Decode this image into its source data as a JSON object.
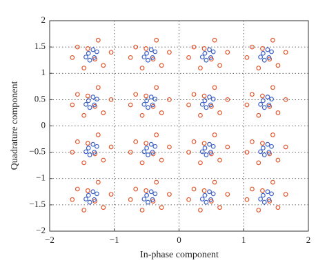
{
  "chart_data": {
    "type": "scatter",
    "xlabel": "In-phase component",
    "ylabel": "Quadrature component",
    "xlim": [
      -2,
      2
    ],
    "ylim": [
      -2,
      2
    ],
    "xticks": [
      {
        "value": -2,
        "label": "−2"
      },
      {
        "value": -1,
        "label": "−1"
      },
      0,
      1,
      2
    ],
    "yticks": [
      {
        "value": -2,
        "label": "−2"
      },
      {
        "value": -1.5,
        "label": "−1.5"
      },
      {
        "value": -1,
        "label": "−1"
      },
      {
        "value": -0.5,
        "label": "−0.5"
      },
      0,
      0.5,
      1,
      1.5,
      2
    ],
    "grid": true,
    "series": [
      {
        "color": "#e2572e",
        "x": [
          -1.57,
          -1.17,
          -1.05,
          -1.47,
          -1.25,
          -1.65,
          -1.3,
          -1.41,
          -0.67,
          -0.27,
          -0.15,
          -0.57,
          -0.35,
          -0.75,
          -0.4,
          -0.51,
          0.23,
          0.63,
          0.75,
          0.33,
          0.55,
          0.15,
          0.5,
          0.39,
          1.13,
          1.53,
          1.65,
          1.23,
          1.45,
          1.05,
          1.4,
          1.29,
          -1.57,
          -1.17,
          -1.05,
          -1.47,
          -1.25,
          -1.65,
          -1.3,
          -1.41,
          -0.67,
          -0.27,
          -0.15,
          -0.57,
          -0.35,
          -0.75,
          -0.4,
          -0.51,
          0.23,
          0.63,
          0.75,
          0.33,
          0.55,
          0.15,
          0.5,
          0.39,
          1.13,
          1.53,
          1.65,
          1.23,
          1.45,
          1.05,
          1.4,
          1.29,
          -1.57,
          -1.17,
          -1.05,
          -1.47,
          -1.25,
          -1.65,
          -1.3,
          -1.41,
          -0.67,
          -0.27,
          -0.15,
          -0.57,
          -0.35,
          -0.75,
          -0.4,
          -0.51,
          0.23,
          0.63,
          0.75,
          0.33,
          0.55,
          0.15,
          0.5,
          0.39,
          1.13,
          1.53,
          1.65,
          1.23,
          1.45,
          1.05,
          1.4,
          1.29,
          -1.57,
          -1.17,
          -1.05,
          -1.47,
          -1.25,
          -1.65,
          -1.3,
          -1.41,
          -0.67,
          -0.27,
          -0.15,
          -0.57,
          -0.35,
          -0.75,
          -0.4,
          -0.51,
          0.23,
          0.63,
          0.75,
          0.33,
          0.55,
          0.15,
          0.5,
          0.39,
          1.13,
          1.53,
          1.65,
          1.23,
          1.45,
          1.05,
          1.4,
          1.29
        ],
        "y": [
          1.5,
          1.15,
          1.4,
          1.1,
          1.63,
          1.3,
          1.27,
          1.47,
          1.5,
          1.15,
          1.4,
          1.1,
          1.63,
          1.3,
          1.27,
          1.47,
          1.5,
          1.15,
          1.4,
          1.1,
          1.63,
          1.3,
          1.27,
          1.47,
          1.5,
          1.15,
          1.4,
          1.1,
          1.63,
          1.3,
          1.27,
          1.47,
          0.6,
          0.25,
          0.5,
          0.2,
          0.73,
          0.4,
          0.37,
          0.57,
          0.6,
          0.25,
          0.5,
          0.2,
          0.73,
          0.4,
          0.37,
          0.57,
          0.6,
          0.25,
          0.5,
          0.2,
          0.73,
          0.4,
          0.37,
          0.57,
          0.6,
          0.25,
          0.5,
          0.2,
          0.73,
          0.4,
          0.37,
          0.57,
          -0.3,
          -0.65,
          -0.4,
          -0.7,
          -0.17,
          -0.5,
          -0.53,
          -0.33,
          -0.3,
          -0.65,
          -0.4,
          -0.7,
          -0.17,
          -0.5,
          -0.53,
          -0.33,
          -0.3,
          -0.65,
          -0.4,
          -0.7,
          -0.17,
          -0.5,
          -0.53,
          -0.33,
          -0.3,
          -0.65,
          -0.4,
          -0.7,
          -0.17,
          -0.5,
          -0.53,
          -0.33,
          -1.2,
          -1.55,
          -1.3,
          -1.6,
          -1.07,
          -1.4,
          -1.43,
          -1.23,
          -1.2,
          -1.55,
          -1.3,
          -1.6,
          -1.07,
          -1.4,
          -1.43,
          -1.23,
          -1.2,
          -1.55,
          -1.3,
          -1.6,
          -1.07,
          -1.4,
          -1.43,
          -1.23,
          -1.2,
          -1.55,
          -1.3,
          -1.6,
          -1.07,
          -1.4,
          -1.43,
          -1.23
        ]
      },
      {
        "color": "#3d63c9",
        "x": [
          -1.4,
          -1.31,
          -1.27,
          -1.44,
          -1.33,
          -1.38,
          -0.5,
          -0.41,
          -0.37,
          -0.54,
          -0.43,
          -0.48,
          0.4,
          0.49,
          0.53,
          0.36,
          0.47,
          0.42,
          1.3,
          1.39,
          1.43,
          1.26,
          1.37,
          1.32,
          -1.4,
          -1.31,
          -1.27,
          -1.44,
          -1.33,
          -1.38,
          -0.5,
          -0.41,
          -0.37,
          -0.54,
          -0.43,
          -0.48,
          0.4,
          0.49,
          0.53,
          0.36,
          0.47,
          0.42,
          1.3,
          1.39,
          1.43,
          1.26,
          1.37,
          1.32,
          -1.4,
          -1.31,
          -1.27,
          -1.44,
          -1.33,
          -1.38,
          -0.5,
          -0.41,
          -0.37,
          -0.54,
          -0.43,
          -0.48,
          0.4,
          0.49,
          0.53,
          0.36,
          0.47,
          0.42,
          1.3,
          1.39,
          1.43,
          1.26,
          1.37,
          1.32,
          -1.4,
          -1.31,
          -1.27,
          -1.44,
          -1.33,
          -1.38,
          -0.5,
          -0.41,
          -0.37,
          -0.54,
          -0.43,
          -0.48,
          0.4,
          0.49,
          0.53,
          0.36,
          0.47,
          0.42,
          1.3,
          1.39,
          1.43,
          1.26,
          1.37,
          1.32
        ],
        "y": [
          1.38,
          1.3,
          1.41,
          1.31,
          1.45,
          1.25,
          1.38,
          1.3,
          1.41,
          1.31,
          1.45,
          1.25,
          1.38,
          1.3,
          1.41,
          1.31,
          1.45,
          1.25,
          1.38,
          1.3,
          1.41,
          1.31,
          1.45,
          1.25,
          0.48,
          0.4,
          0.51,
          0.41,
          0.55,
          0.35,
          0.48,
          0.4,
          0.51,
          0.41,
          0.55,
          0.35,
          0.48,
          0.4,
          0.51,
          0.41,
          0.55,
          0.35,
          0.48,
          0.4,
          0.51,
          0.41,
          0.55,
          0.35,
          -0.42,
          -0.5,
          -0.39,
          -0.49,
          -0.35,
          -0.55,
          -0.42,
          -0.5,
          -0.39,
          -0.49,
          -0.35,
          -0.55,
          -0.42,
          -0.5,
          -0.39,
          -0.49,
          -0.35,
          -0.55,
          -0.42,
          -0.5,
          -0.39,
          -0.49,
          -0.35,
          -0.55,
          -1.32,
          -1.4,
          -1.29,
          -1.39,
          -1.25,
          -1.45,
          -1.32,
          -1.4,
          -1.29,
          -1.39,
          -1.25,
          -1.45,
          -1.32,
          -1.4,
          -1.29,
          -1.39,
          -1.25,
          -1.45,
          -1.32,
          -1.4,
          -1.29,
          -1.39,
          -1.25,
          -1.45
        ]
      }
    ]
  }
}
